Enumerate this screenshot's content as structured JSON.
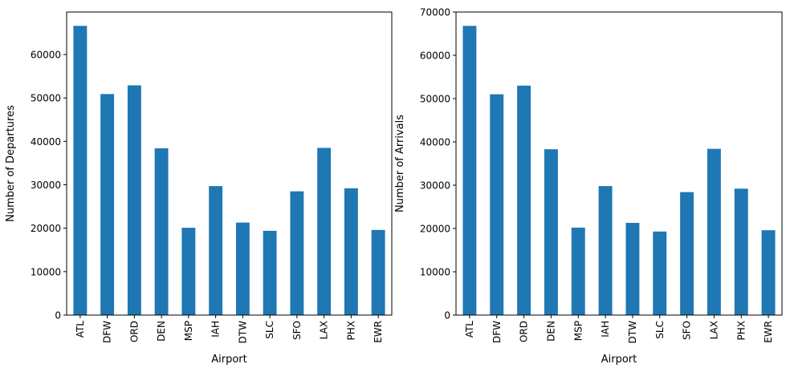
{
  "chart_data": [
    {
      "type": "bar",
      "categories": [
        "ATL",
        "DFW",
        "ORD",
        "DEN",
        "MSP",
        "IAH",
        "DTW",
        "SLC",
        "SFO",
        "LAX",
        "PHX",
        "EWR"
      ],
      "values": [
        66600,
        50900,
        52900,
        38400,
        20100,
        29700,
        21300,
        19400,
        28500,
        38500,
        29200,
        19600
      ],
      "xlabel": "Airport",
      "ylabel": "Number of Departures",
      "ylim": [
        0,
        70000
      ],
      "yticks": [
        0,
        10000,
        20000,
        30000,
        40000,
        50000,
        60000
      ],
      "color": "#1f77b4",
      "grid": false,
      "legend": "none"
    },
    {
      "type": "bar",
      "categories": [
        "ATL",
        "DFW",
        "ORD",
        "DEN",
        "MSP",
        "IAH",
        "DTW",
        "SLC",
        "SFO",
        "LAX",
        "PHX",
        "EWR"
      ],
      "values": [
        66800,
        51000,
        53000,
        38300,
        20200,
        29800,
        21300,
        19300,
        28400,
        38400,
        29200,
        19600
      ],
      "xlabel": "Airport",
      "ylabel": "Number of Arrivals",
      "ylim": [
        0,
        70000
      ],
      "yticks": [
        0,
        10000,
        20000,
        30000,
        40000,
        50000,
        60000,
        70000
      ],
      "color": "#1f77b4",
      "grid": false,
      "legend": "none"
    }
  ]
}
